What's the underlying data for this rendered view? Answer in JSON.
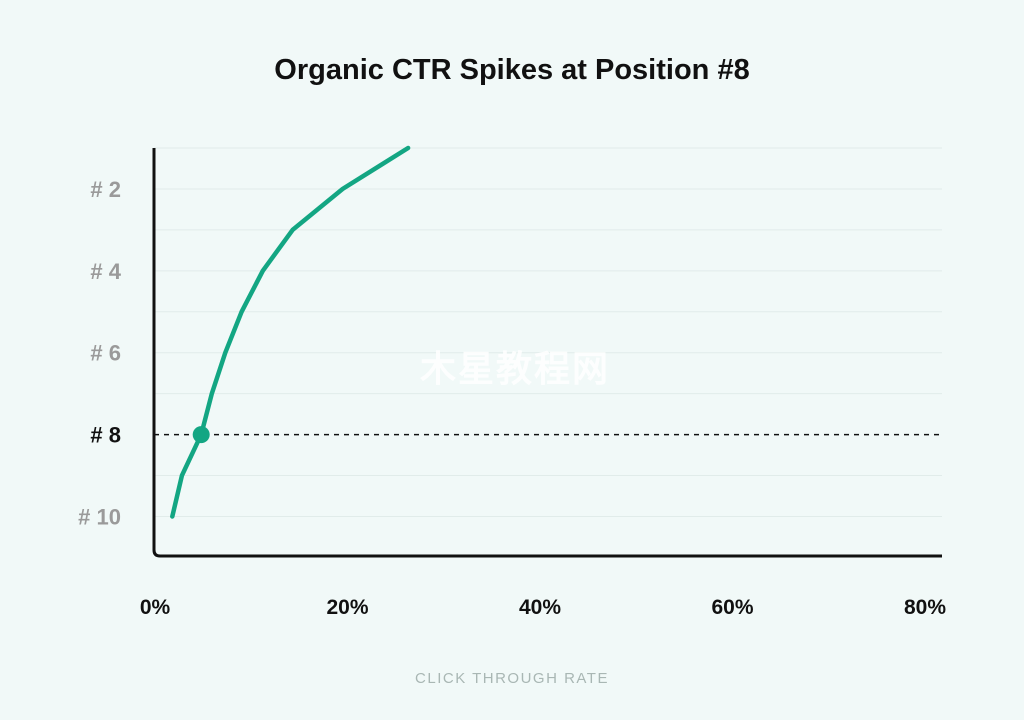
{
  "chart_data": {
    "type": "line",
    "title": "Organic CTR Spikes at Position #8",
    "xlabel": "CLICK THROUGH RATE",
    "ylabel": "",
    "xlim": [
      0,
      80
    ],
    "ylim": [
      1,
      11
    ],
    "y_inverted": true,
    "x_ticks": [
      "0%",
      "20%",
      "40%",
      "60%",
      "80%"
    ],
    "x_tick_values": [
      0,
      20,
      40,
      60,
      80
    ],
    "y_ticks": [
      "# 2",
      "# 4",
      "# 6",
      "# 8",
      "# 10"
    ],
    "y_tick_values": [
      2,
      4,
      6,
      8,
      10
    ],
    "highlight_position": 8,
    "highlight_ctr": 4.8,
    "grid": true,
    "line_color": "#13a683",
    "series": [
      {
        "x": [
          26.3,
          19.5,
          14.3,
          11.2,
          9.0,
          7.3,
          5.9,
          4.8,
          2.8,
          1.8
        ],
        "y": [
          1,
          2,
          3,
          4,
          5,
          6,
          7,
          8,
          9,
          10
        ]
      }
    ]
  },
  "watermark": "木星教程网"
}
